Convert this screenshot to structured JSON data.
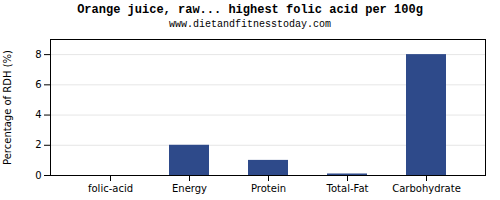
{
  "chart_data": {
    "type": "bar",
    "title": "Orange juice, raw... highest folic acid per 100g",
    "subtitle": "www.dietandfitnesstoday.com",
    "categories": [
      "folic-acid",
      "Energy",
      "Protein",
      "Total-Fat",
      "Carbohydrate"
    ],
    "values": [
      0.0,
      2.0,
      1.0,
      0.1,
      8.0
    ],
    "color": "#2e4a8a",
    "ylabel": "Percentage of RDH (%)",
    "ylim": [
      0,
      9
    ],
    "yticks": [
      0,
      2,
      4,
      6,
      8
    ],
    "grid": true
  }
}
